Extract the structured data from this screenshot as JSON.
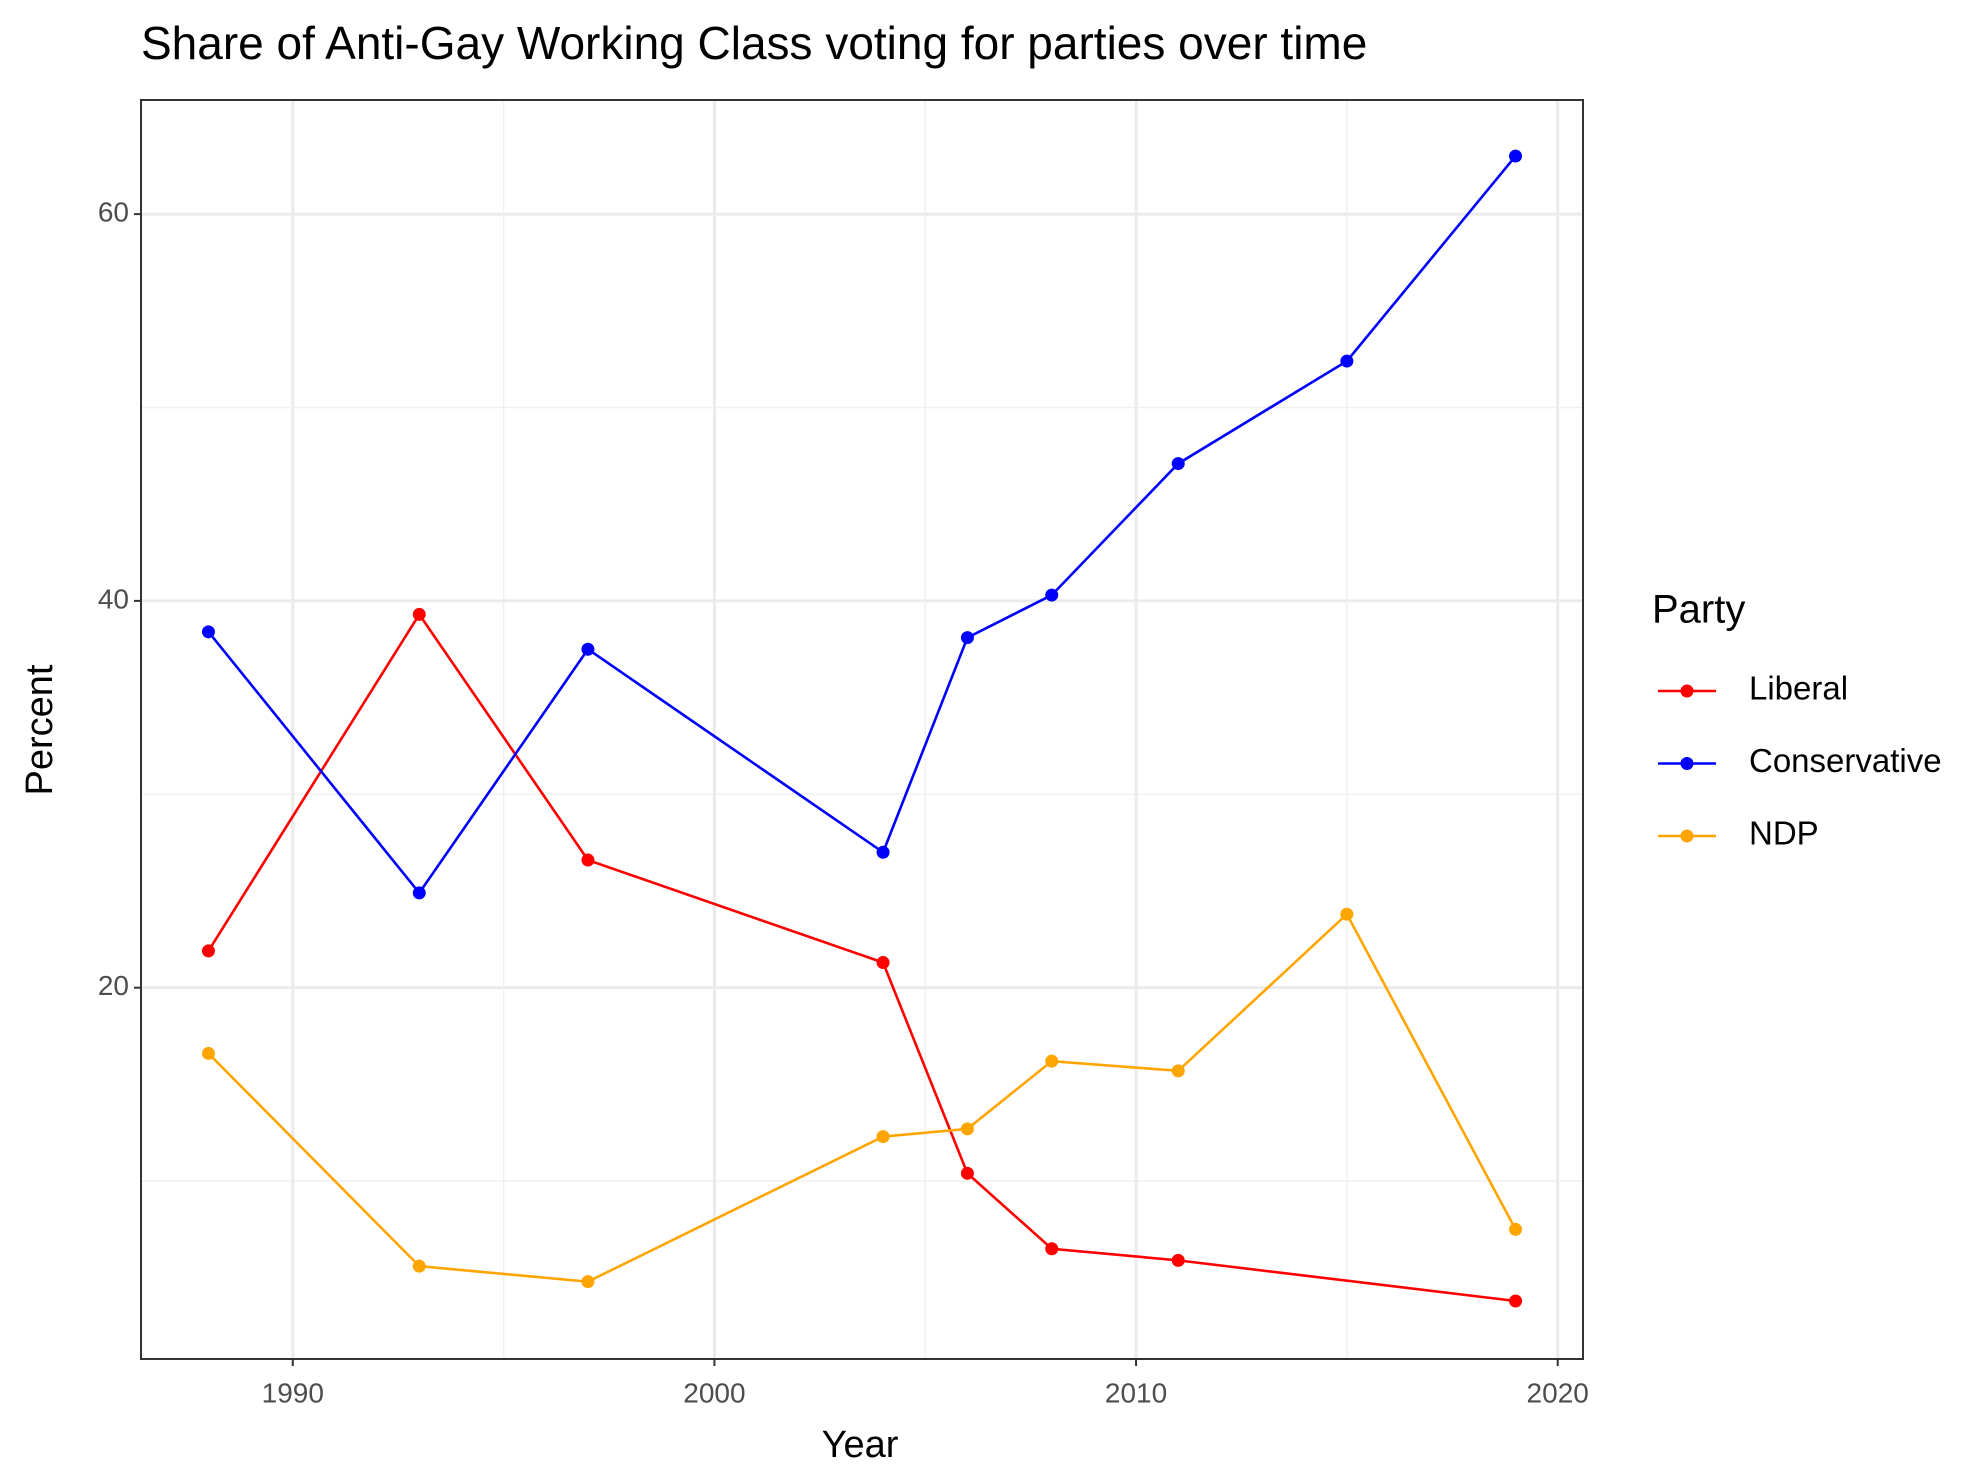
{
  "chart_data": {
    "type": "line",
    "title": "Share of Anti-Gay Working Class voting for parties over time",
    "xlabel": "Year",
    "ylabel": "Percent",
    "legend_title": "Party",
    "legend": "right",
    "series": [
      {
        "name": "Liberal",
        "color": "#ff0000",
        "x": [
          1988,
          1993,
          1997,
          2004,
          2006,
          2008,
          2011,
          2019
        ],
        "values": [
          21.9,
          39.3,
          26.6,
          21.3,
          10.4,
          6.5,
          5.9,
          3.8
        ]
      },
      {
        "name": "Conservative",
        "color": "#0000ff",
        "x": [
          1988,
          1993,
          1997,
          2004,
          2006,
          2008,
          2011,
          2015,
          2019
        ],
        "values": [
          38.4,
          24.9,
          37.5,
          27.0,
          38.1,
          40.3,
          47.1,
          52.4,
          63.0
        ]
      },
      {
        "name": "NDP",
        "color": "#ffa500",
        "x": [
          1988,
          1993,
          1997,
          2004,
          2006,
          2008,
          2011,
          2015,
          2019
        ],
        "values": [
          16.6,
          5.6,
          4.8,
          12.3,
          12.7,
          16.2,
          15.7,
          23.8,
          7.5
        ]
      }
    ],
    "xlim": [
      1986.4,
      2020.6
    ],
    "xticks": [
      1990,
      2000,
      2010,
      2020
    ],
    "xminor": [
      1995,
      2005,
      2015
    ],
    "ylim": [
      0.8,
      65.9
    ],
    "yticks": [
      20,
      40,
      60
    ],
    "yminor": [
      10,
      30,
      50
    ],
    "grid": true
  }
}
